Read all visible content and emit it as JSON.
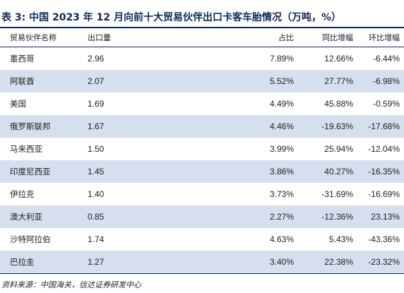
{
  "title": "表 3:  中国 2023 年 12 月向前十大贸易伙伴出口卡客车胎情况（万吨，%）",
  "columns": [
    "贸易伙伴名称",
    "出口量",
    "占比",
    "同比增幅",
    "环比增幅"
  ],
  "rows": [
    {
      "country": "墨西哥",
      "qty": "2.96",
      "share": "7.89%",
      "yoy": "12.66%",
      "mom": "-6.44%"
    },
    {
      "country": "阿联酋",
      "qty": "2.07",
      "share": "5.52%",
      "yoy": "27.77%",
      "mom": "-6.98%"
    },
    {
      "country": "美国",
      "qty": "1.69",
      "share": "4.49%",
      "yoy": "45.88%",
      "mom": "-0.59%"
    },
    {
      "country": "俄罗斯联邦",
      "qty": "1.67",
      "share": "4.46%",
      "yoy": "-19.63%",
      "mom": "-17.68%"
    },
    {
      "country": "马来西亚",
      "qty": "1.50",
      "share": "3.99%",
      "yoy": "25.94%",
      "mom": "-12.04%"
    },
    {
      "country": "印度尼西亚",
      "qty": "1.45",
      "share": "3.86%",
      "yoy": "40.27%",
      "mom": "-16.35%"
    },
    {
      "country": "伊拉克",
      "qty": "1.40",
      "share": "3.73%",
      "yoy": "-31.69%",
      "mom": "-16.69%"
    },
    {
      "country": "澳大利亚",
      "qty": "0.85",
      "share": "2.27%",
      "yoy": "-12.36%",
      "mom": "23.13%"
    },
    {
      "country": "沙特阿拉伯",
      "qty": "1.74",
      "share": "4.63%",
      "yoy": "5.43%",
      "mom": "-43.36%"
    },
    {
      "country": "巴拉圭",
      "qty": "1.27",
      "share": "3.40%",
      "yoy": "22.38%",
      "mom": "-23.32%"
    }
  ],
  "source": "资料来源：中国海关，信达证券研发中心",
  "colors": {
    "accent": "#0d2b59",
    "stripe": "#d5dfee"
  }
}
